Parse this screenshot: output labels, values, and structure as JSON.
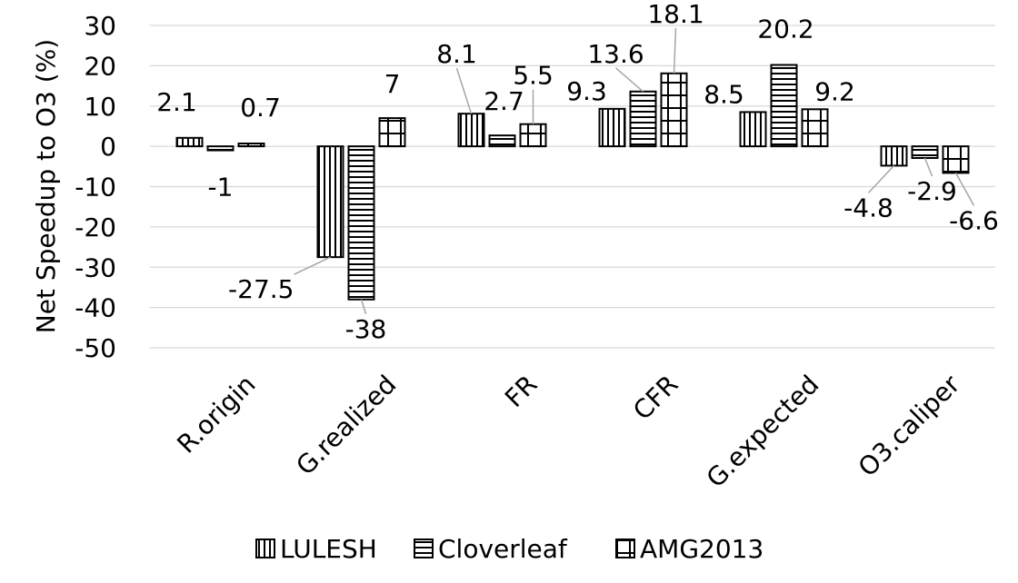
{
  "chart_data": {
    "type": "bar",
    "title": "",
    "ylabel": "Net Speedup to O3 (%)",
    "xlabel": "",
    "ylim": [
      -50,
      30
    ],
    "yticks": [
      30,
      20,
      10,
      0,
      -10,
      -20,
      -30,
      -40,
      -50
    ],
    "grid": true,
    "legend_position": "bottom",
    "categories": [
      "R.origin",
      "G.realized",
      "FR",
      "CFR",
      "G.expected",
      "O3.caliper"
    ],
    "series": [
      {
        "name": "LULESH",
        "pattern": "vertical-lines",
        "values": [
          2.1,
          -27.5,
          8.1,
          9.3,
          8.5,
          -4.8
        ]
      },
      {
        "name": "Cloverleaf",
        "pattern": "horizontal-lines",
        "values": [
          -1,
          -38,
          2.7,
          13.6,
          20.2,
          -2.9
        ]
      },
      {
        "name": "AMG2013",
        "pattern": "grid",
        "values": [
          0.7,
          7,
          5.5,
          18.1,
          9.2,
          -6.6
        ]
      }
    ]
  }
}
